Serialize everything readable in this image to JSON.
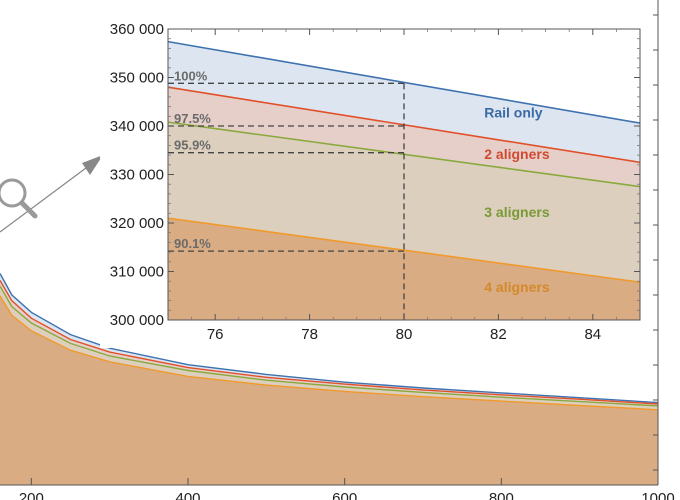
{
  "chart_data": [
    {
      "type": "area",
      "role": "main",
      "x_tick_labels": [
        "200",
        "400",
        "600",
        "800",
        "1000"
      ],
      "x_ticks": [
        200,
        400,
        600,
        800,
        1000
      ],
      "xlim": [
        160,
        1000
      ],
      "ylim": [
        0,
        500000
      ],
      "grid": false,
      "series": [
        {
          "key": "rail",
          "color": "#3e72b0",
          "fill": "#dde6f0",
          "x": [
            160,
            175,
            200,
            250,
            300,
            400,
            500,
            600,
            700,
            800,
            900,
            1000
          ],
          "y": [
            218000,
            196000,
            178000,
            155000,
            141000,
            124000,
            114000,
            106000,
            100000,
            95000,
            90000,
            85000
          ]
        },
        {
          "key": "two",
          "color": "#e1502a",
          "fill": "#e6cfc9",
          "x": [
            160,
            175,
            200,
            250,
            300,
            400,
            500,
            600,
            700,
            800,
            900,
            1000
          ],
          "y": [
            211000,
            190000,
            172000,
            150000,
            137000,
            121000,
            111000,
            104000,
            98000,
            93000,
            88500,
            83500
          ]
        },
        {
          "key": "three",
          "color": "#8aa93d",
          "fill": "#dccfbe",
          "x": [
            160,
            175,
            200,
            250,
            300,
            400,
            500,
            600,
            700,
            800,
            900,
            1000
          ],
          "y": [
            205000,
            184000,
            167000,
            146000,
            133000,
            118000,
            108000,
            101000,
            95500,
            90500,
            86000,
            81500
          ]
        },
        {
          "key": "four",
          "color": "#f09a2c",
          "fill": "#d9ac84",
          "x": [
            160,
            175,
            200,
            250,
            300,
            400,
            500,
            600,
            700,
            800,
            900,
            1000
          ],
          "y": [
            195000,
            175000,
            159000,
            139000,
            127000,
            112000,
            103000,
            96500,
            91000,
            86500,
            82000,
            77500
          ]
        }
      ]
    },
    {
      "type": "area",
      "role": "inset",
      "xlim": [
        75,
        85
      ],
      "ylim": [
        300000,
        360000
      ],
      "x_ticks": [
        76,
        78,
        80,
        82,
        84
      ],
      "x_tick_labels": [
        "76",
        "78",
        "80",
        "82",
        "84"
      ],
      "y_ticks": [
        300000,
        310000,
        320000,
        330000,
        340000,
        350000,
        360000
      ],
      "y_tick_labels": [
        "300 000",
        "310 000",
        "320 000",
        "330 000",
        "340 000",
        "350 000",
        "360 000"
      ],
      "grid": false,
      "series": [
        {
          "key": "rail",
          "name": "Rail only",
          "color": "#3e72b0",
          "label_color": "#3a6aa5",
          "fill": "#dde6f0",
          "x": [
            75,
            85
          ],
          "y": [
            357400,
            340600
          ]
        },
        {
          "key": "two",
          "name": "2 aligners",
          "color": "#e1502a",
          "label_color": "#d04a32",
          "fill": "#e6cfc9",
          "x": [
            75,
            85
          ],
          "y": [
            348000,
            332500
          ]
        },
        {
          "key": "three",
          "name": "3 aligners",
          "color": "#8aa93d",
          "label_color": "#7a9a35",
          "fill": "#dccfbe",
          "x": [
            75,
            85
          ],
          "y": [
            340800,
            327500
          ]
        },
        {
          "key": "four",
          "name": "4 aligners",
          "color": "#f09a2c",
          "label_color": "#d48a2a",
          "fill": "#d9ac84",
          "x": [
            75,
            85
          ],
          "y": [
            321000,
            307800
          ]
        }
      ],
      "reference_x": 80,
      "reference_lines": [
        {
          "value": 348800,
          "label": "100%"
        },
        {
          "value": 340000,
          "label": "97.5%"
        },
        {
          "value": 334500,
          "label": "95.9%"
        },
        {
          "value": 314200,
          "label": "90.1%"
        }
      ],
      "series_label_positions": [
        {
          "key": "rail",
          "x": 81.7,
          "y": 341800
        },
        {
          "key": "two",
          "x": 81.7,
          "y": 333200
        },
        {
          "key": "three",
          "x": 81.7,
          "y": 321200
        },
        {
          "key": "four",
          "x": 81.7,
          "y": 305800
        }
      ]
    }
  ],
  "zoom_indicator": {
    "icon": "magnifier-icon",
    "arrow_color": "#888888"
  }
}
